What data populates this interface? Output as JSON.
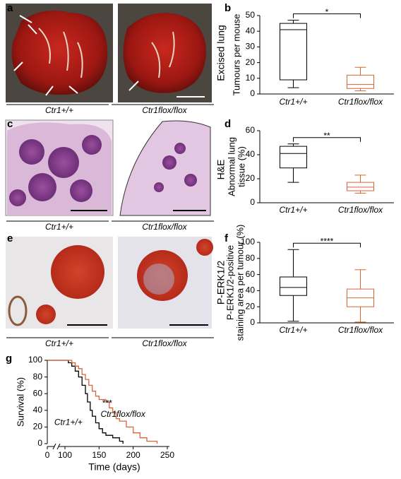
{
  "panel_labels": [
    "a",
    "b",
    "c",
    "d",
    "e",
    "f",
    "g"
  ],
  "images": [
    {
      "label": "Excised lung",
      "captions": [
        "Ctr1+/+",
        "Ctr1flox/flox"
      ]
    },
    {
      "label": "H&E",
      "captions": [
        "Ctr1+/+",
        "Ctr1flox/flox"
      ]
    },
    {
      "label": "P-ERK1/2",
      "captions": [
        "Ctr1+/+",
        "Ctr1flox/flox"
      ]
    }
  ],
  "chart_data": [
    {
      "type": "box",
      "ylabel": [
        "Tumours per mouse"
      ],
      "annotation": "*",
      "categories": [
        "Ctr1+/+",
        "Ctr1flox/flox"
      ],
      "colors": [
        "#000000",
        "#d9643a"
      ],
      "boxes": [
        {
          "whislo": 4,
          "q1": 9,
          "med": 41,
          "q3": 45,
          "whishi": 47
        },
        {
          "whislo": 2,
          "q1": 3.5,
          "med": 6,
          "q3": 12,
          "whishi": 17
        }
      ],
      "ylim": [
        0,
        50
      ],
      "yticks": [
        0,
        10,
        20,
        30,
        40,
        50
      ]
    },
    {
      "type": "box",
      "ylabel": [
        "Abnormal lung",
        "tissue (%)"
      ],
      "annotation": "**",
      "categories": [
        "Ctr1+/+",
        "Ctr1flox/flox"
      ],
      "colors": [
        "#000000",
        "#d9643a"
      ],
      "boxes": [
        {
          "whislo": 17,
          "q1": 29,
          "med": 41,
          "q3": 47,
          "whishi": 49
        },
        {
          "whislo": 8,
          "q1": 10,
          "med": 13,
          "q3": 17,
          "whishi": 23
        }
      ],
      "ylim": [
        0,
        60
      ],
      "yticks": [
        0,
        20,
        40,
        60
      ]
    },
    {
      "type": "box",
      "ylabel": [
        "P-ERK1/2-positive",
        "staining area per tumour (%)"
      ],
      "annotation": "****",
      "categories": [
        "Ctr1+/+",
        "Ctr1flox/flox"
      ],
      "colors": [
        "#000000",
        "#d9643a"
      ],
      "boxes": [
        {
          "whislo": 2,
          "q1": 34,
          "med": 44,
          "q3": 57,
          "whishi": 91
        },
        {
          "whislo": 1,
          "q1": 20,
          "med": 31,
          "q3": 42,
          "whishi": 66
        }
      ],
      "ylim": [
        0,
        100
      ],
      "yticks": [
        0,
        20,
        40,
        60,
        80,
        100
      ]
    },
    {
      "type": "line",
      "xlabel": "Time (days)",
      "ylabel": [
        "Survival (%)"
      ],
      "annotation": "***",
      "xlim": [
        0,
        250
      ],
      "xticks": [
        0,
        100,
        150,
        200,
        250
      ],
      "ylim": [
        0,
        100
      ],
      "yticks": [
        0,
        20,
        40,
        60,
        80,
        100
      ],
      "series": [
        {
          "name": "Ctr1+/+",
          "color": "#000000",
          "x": [
            0,
            105,
            105,
            110,
            110,
            115,
            115,
            120,
            120,
            125,
            125,
            130,
            130,
            133,
            133,
            137,
            137,
            140,
            140,
            145,
            145,
            150,
            150,
            155,
            155,
            160,
            160,
            170,
            170,
            180,
            180,
            185,
            185
          ],
          "values": [
            100,
            100,
            97,
            97,
            93,
            93,
            87,
            87,
            80,
            80,
            70,
            70,
            60,
            60,
            50,
            50,
            40,
            40,
            33,
            33,
            25,
            25,
            18,
            18,
            13,
            13,
            10,
            10,
            7,
            7,
            3,
            3,
            0
          ]
        },
        {
          "name": "Ctr1flox/flox",
          "color": "#d9643a",
          "x": [
            0,
            110,
            110,
            115,
            115,
            120,
            120,
            125,
            125,
            130,
            130,
            135,
            135,
            140,
            140,
            145,
            145,
            150,
            150,
            160,
            160,
            165,
            165,
            170,
            170,
            175,
            175,
            180,
            180,
            190,
            190,
            200,
            200,
            210,
            210,
            220,
            220,
            235,
            235
          ],
          "values": [
            100,
            100,
            97,
            97,
            93,
            93,
            90,
            90,
            83,
            83,
            77,
            77,
            70,
            70,
            63,
            63,
            57,
            57,
            53,
            53,
            50,
            50,
            43,
            43,
            37,
            37,
            30,
            30,
            27,
            27,
            20,
            20,
            13,
            13,
            7,
            7,
            3,
            3,
            0
          ]
        }
      ]
    }
  ]
}
